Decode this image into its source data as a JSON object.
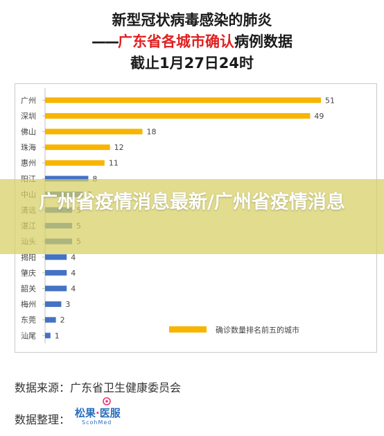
{
  "title": {
    "line1": "新型冠状病毒感染的肺炎",
    "line2_dash": "——",
    "line2_red": "广东省各城市确认",
    "line2_rest": "病例数据",
    "line3": "截止1月27日24时"
  },
  "chart_data": {
    "type": "bar",
    "orientation": "horizontal",
    "categories": [
      "广州",
      "深圳",
      "佛山",
      "珠海",
      "惠州",
      "阳江",
      "中山",
      "清远",
      "湛江",
      "汕头",
      "揭阳",
      "肇庆",
      "韶关",
      "梅州",
      "东莞",
      "汕尾"
    ],
    "values": [
      51,
      49,
      18,
      12,
      11,
      8,
      7,
      5,
      5,
      5,
      4,
      4,
      4,
      3,
      2,
      1
    ],
    "top5_color": "#f7b500",
    "other_color": "#4472c4",
    "xlim": [
      0,
      51
    ],
    "grid": false,
    "legend": {
      "label": "确诊数量排名前五的城市",
      "color": "#f7b500",
      "position": "bottom-right"
    }
  },
  "footer": {
    "source": "数据来源：广东省卫生健康委员会",
    "organizer": "数据整理：",
    "logo_main_a": "松果",
    "logo_main_b": "医服",
    "logo_sub": "ScohMed"
  },
  "banner": {
    "text": "广州省疫情消息最新/广州省疫情消息",
    "bg": "#d6ce62"
  }
}
